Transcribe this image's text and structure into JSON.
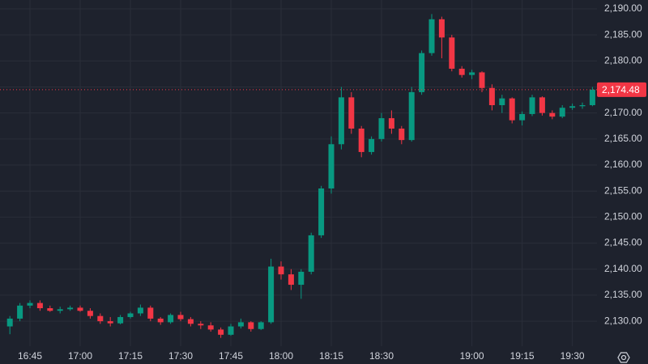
{
  "chart_data": {
    "type": "candlestick",
    "x": [
      "16:39",
      "16:42",
      "16:45",
      "16:48",
      "16:51",
      "16:54",
      "16:57",
      "17:00",
      "17:03",
      "17:06",
      "17:09",
      "17:12",
      "17:15",
      "17:18",
      "17:21",
      "17:24",
      "17:27",
      "17:30",
      "17:33",
      "17:36",
      "17:39",
      "17:42",
      "17:45",
      "17:48",
      "17:51",
      "17:54",
      "17:57",
      "18:00",
      "18:03",
      "18:06",
      "18:09",
      "18:12",
      "18:15",
      "18:18",
      "18:21",
      "18:24",
      "18:27",
      "18:30",
      "18:33",
      "18:36",
      "18:39",
      "18:42",
      "18:45",
      "18:48",
      "18:51",
      "18:54",
      "19:00",
      "19:03",
      "19:06",
      "19:09",
      "19:12",
      "19:15",
      "19:18",
      "19:21",
      "19:24",
      "19:27",
      "19:30",
      "19:33",
      "19:36"
    ],
    "open": [
      2129,
      2130.5,
      2133,
      2133.5,
      2132.5,
      2132,
      2132.3,
      2132.6,
      2132,
      2131,
      2130,
      2129.6,
      2130.8,
      2131.5,
      2132.6,
      2130.5,
      2129.8,
      2131.2,
      2130.4,
      2129.5,
      2129.2,
      2128.4,
      2127.4,
      2129,
      2129.8,
      2128.5,
      2129.8,
      2140.5,
      2139,
      2137,
      2139.5,
      2146.5,
      2155.5,
      2164,
      2173,
      2167,
      2162.5,
      2165,
      2169,
      2167,
      2164.8,
      2174,
      2181.5,
      2188,
      2184.5,
      2178.5,
      2177.3,
      2177.8,
      2174.8,
      2171.5,
      2172.8,
      2168.6,
      2169.8,
      2173,
      2170,
      2169.3,
      2171,
      2171.3,
      2171.5
    ],
    "high": [
      2131,
      2133.5,
      2134,
      2134,
      2133,
      2132.8,
      2133,
      2133,
      2132.5,
      2131.5,
      2130.8,
      2131.2,
      2131.8,
      2133.2,
      2133,
      2130.8,
      2131.5,
      2131.8,
      2130.8,
      2130,
      2129.8,
      2128.8,
      2129.5,
      2130.5,
      2130,
      2130,
      2142,
      2141.5,
      2140,
      2140,
      2147,
      2156,
      2165.5,
      2175,
      2174,
      2167.5,
      2165.5,
      2170,
      2170.5,
      2167.5,
      2175,
      2182,
      2189,
      2188.5,
      2185,
      2179,
      2178.3,
      2178,
      2175.5,
      2173.5,
      2173,
      2170.3,
      2173.5,
      2173.2,
      2170.5,
      2171.5,
      2171.8,
      2172,
      2175
    ],
    "low": [
      2127.5,
      2130,
      2132.5,
      2132,
      2131.8,
      2131.5,
      2132,
      2131.8,
      2130.5,
      2129.5,
      2129,
      2129.4,
      2130.5,
      2131,
      2130,
      2129.3,
      2129.5,
      2130,
      2129,
      2128.5,
      2128,
      2126.8,
      2127.2,
      2128.6,
      2128,
      2128.3,
      2129.5,
      2138,
      2136,
      2134.3,
      2139,
      2146,
      2154.5,
      2163,
      2166,
      2161.5,
      2162,
      2164.5,
      2166,
      2164,
      2164.5,
      2173.5,
      2181,
      2180.5,
      2178,
      2176.8,
      2176.5,
      2174,
      2170.5,
      2170,
      2168,
      2167.6,
      2169.4,
      2169.5,
      2168.8,
      2169,
      2170.6,
      2170.8,
      2171.3
    ],
    "close": [
      2130.5,
      2133,
      2133.5,
      2132.5,
      2132,
      2132.3,
      2132.6,
      2132,
      2131,
      2130,
      2129.6,
      2130.8,
      2131.5,
      2132.6,
      2130.5,
      2129.8,
      2131.2,
      2130.4,
      2129.5,
      2129.2,
      2128.4,
      2127.4,
      2129,
      2129.8,
      2128.5,
      2129.8,
      2140.5,
      2139,
      2137,
      2139.5,
      2146.5,
      2155.5,
      2164,
      2173,
      2167,
      2162.5,
      2165,
      2169,
      2167,
      2164.8,
      2174,
      2181.5,
      2188,
      2184.5,
      2178.5,
      2177.3,
      2177.8,
      2174.8,
      2171.5,
      2172.8,
      2168.6,
      2169.8,
      2173,
      2170,
      2169.3,
      2171,
      2171.3,
      2171.5,
      2174.48
    ],
    "up_color": "#089981",
    "down_color": "#f23645",
    "ylim": [
      2125.2,
      2191.7
    ],
    "yticks": [
      {
        "value": 2130,
        "label": "2,130.00"
      },
      {
        "value": 2135,
        "label": "2,135.00"
      },
      {
        "value": 2140,
        "label": "2,140.00"
      },
      {
        "value": 2145,
        "label": "2,145.00"
      },
      {
        "value": 2150,
        "label": "2,150.00"
      },
      {
        "value": 2155,
        "label": "2,155.00"
      },
      {
        "value": 2160,
        "label": "2,160.00"
      },
      {
        "value": 2165,
        "label": "2,165.00"
      },
      {
        "value": 2170,
        "label": "2,170.00"
      },
      {
        "value": 2175,
        "label": "2,175.00"
      },
      {
        "value": 2180,
        "label": "2,180.00"
      },
      {
        "value": 2185,
        "label": "2,185.00"
      },
      {
        "value": 2190,
        "label": "2,190.00"
      }
    ],
    "xticks": [
      "16:45",
      "17:00",
      "17:15",
      "17:30",
      "17:45",
      "18:00",
      "18:15",
      "18:30",
      "19:00",
      "19:15",
      "19:30"
    ],
    "grid": true,
    "last_price": {
      "value": 2174.48,
      "label": "2,174.48"
    }
  }
}
